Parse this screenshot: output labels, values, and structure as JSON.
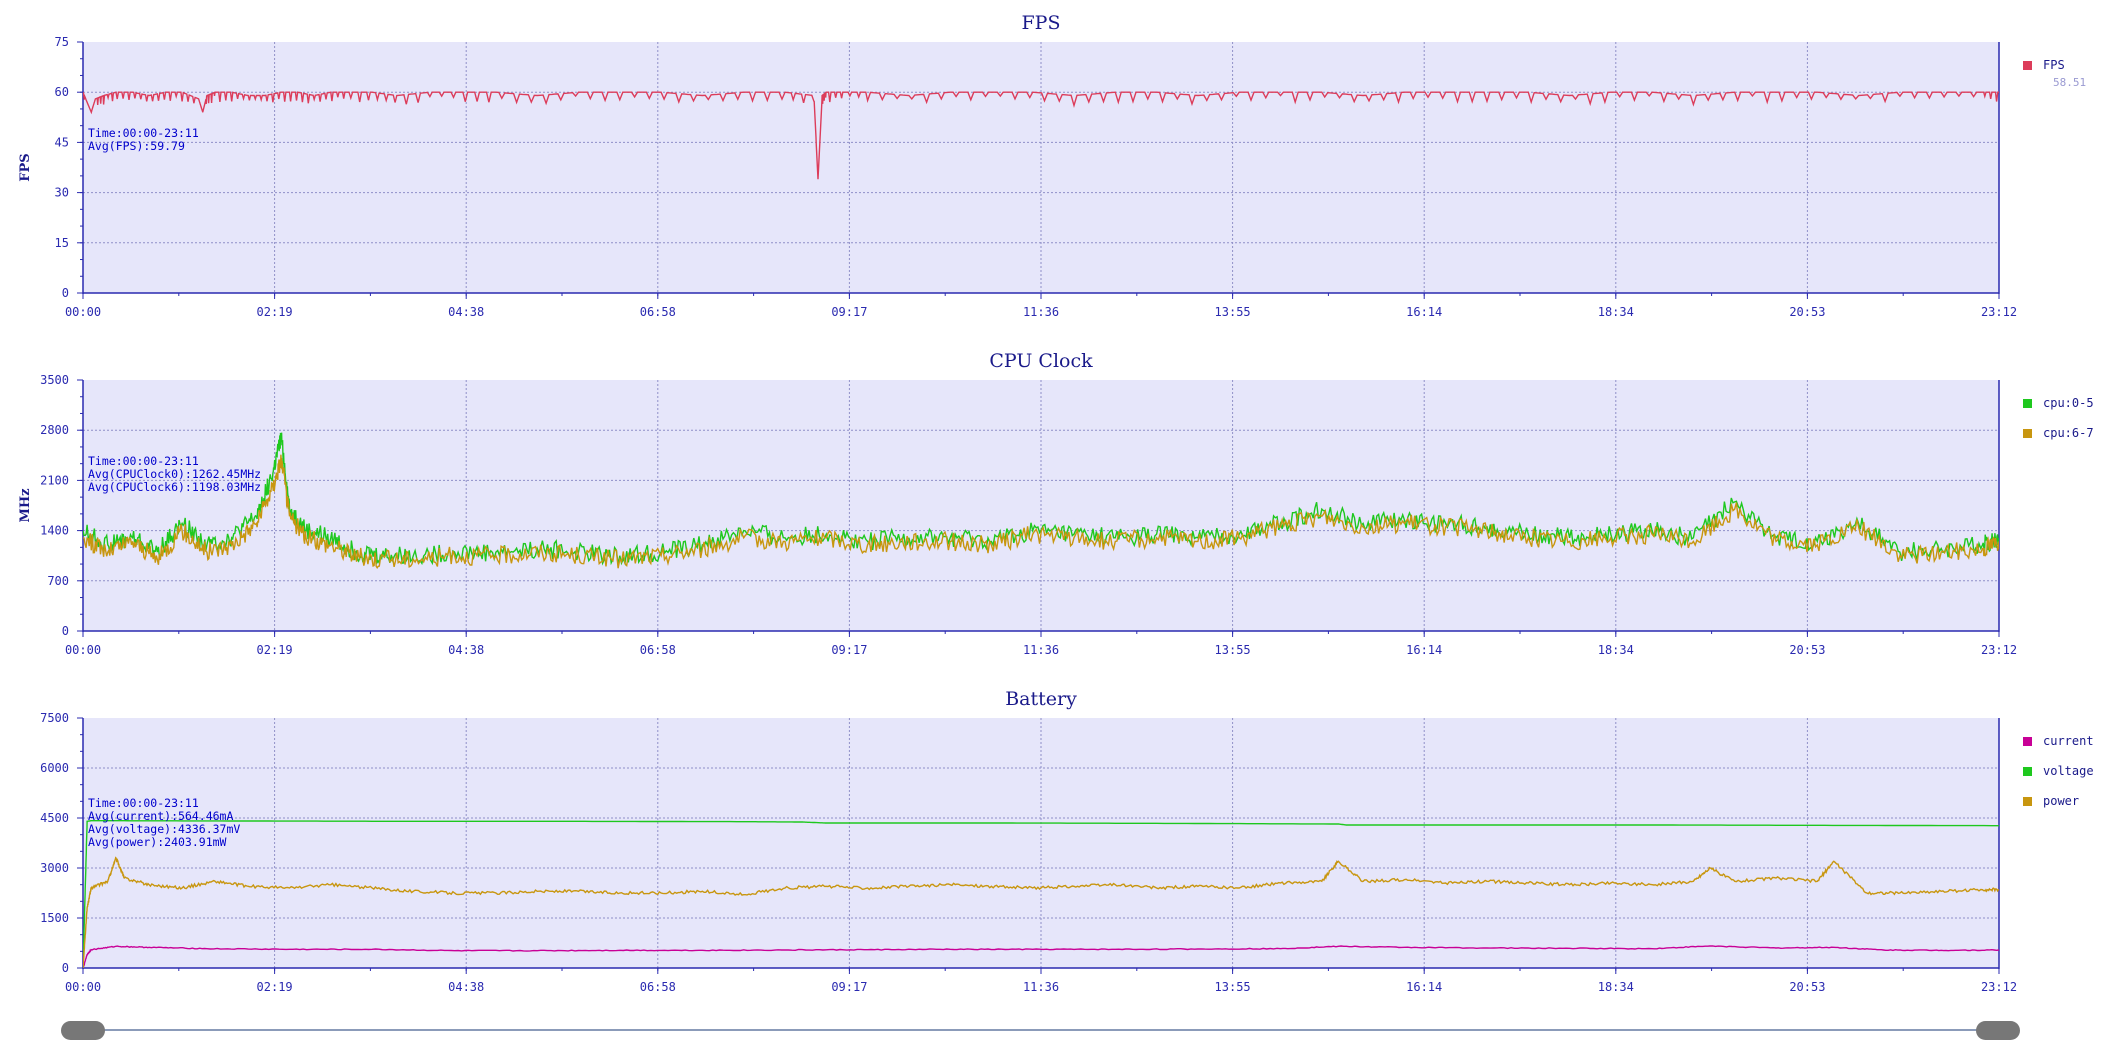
{
  "colors": {
    "plot_bg": "#e6e6fa",
    "axis": "#2a2ab0",
    "grid": "#8f8fc8",
    "title": "#1a1a8a",
    "info": "#0000cc",
    "fps": "#dc3c5a",
    "cpu05": "#1ec81e",
    "cpu67": "#c8960f",
    "current": "#c80096",
    "voltage": "#1ec81e",
    "power": "#c8960f",
    "slider": "#777777"
  },
  "time_ticks": [
    "00:00",
    "02:19",
    "04:38",
    "06:58",
    "09:17",
    "11:36",
    "13:55",
    "16:14",
    "18:34",
    "20:53",
    "23:12"
  ],
  "chart_data": [
    {
      "id": "fps",
      "type": "line",
      "title": "FPS",
      "ylabel": "FPS",
      "ylim": [
        0,
        75
      ],
      "yticks": [
        0,
        15,
        30,
        45,
        60,
        75
      ],
      "xlim_minutes": [
        0,
        23.2
      ],
      "grid": true,
      "legend_placement": "right",
      "info_lines": [
        "Time:00:00-23:11",
        "Avg(FPS):59.79"
      ],
      "series": [
        {
          "name": "FPS",
          "legend_value": "58.51",
          "color_key": "fps",
          "x": [
            0,
            0.1,
            0.15,
            0.25,
            0.4,
            0.6,
            0.8,
            1.0,
            1.2,
            1.4,
            1.45,
            1.5,
            1.6,
            1.8,
            2.0,
            2.2,
            2.4,
            2.6,
            2.8,
            3.0,
            3.2,
            3.5,
            3.8,
            4.2,
            4.6,
            5.0,
            5.5,
            6.0,
            6.5,
            7.0,
            7.5,
            8.0,
            8.5,
            8.85,
            8.9,
            8.95,
            9.0,
            9.2,
            9.5,
            10.0,
            10.5,
            11.0,
            11.5,
            12.0,
            12.5,
            13.0,
            13.5,
            14.0,
            14.5,
            15.0,
            15.5,
            16.0,
            16.5,
            17.0,
            17.5,
            18.0,
            18.5,
            19.0,
            19.5,
            20.0,
            20.5,
            21.0,
            21.5,
            22.0,
            22.5,
            23.0,
            23.2
          ],
          "y": [
            60,
            54,
            58,
            59,
            60,
            60,
            59,
            60,
            60,
            58,
            54,
            59,
            60,
            60,
            59,
            59,
            60,
            60,
            59,
            60,
            60,
            60,
            59,
            60,
            60,
            60,
            59,
            60,
            60,
            60,
            59,
            60,
            60,
            59,
            34,
            59,
            60,
            60,
            60,
            59,
            60,
            60,
            60,
            59,
            60,
            60,
            59,
            60,
            60,
            60,
            59,
            60,
            60,
            60,
            60,
            59,
            60,
            60,
            59,
            60,
            60,
            60,
            59,
            60,
            60,
            60,
            60
          ]
        }
      ]
    },
    {
      "id": "cpu",
      "type": "line",
      "title": "CPU Clock",
      "ylabel": "MHz",
      "ylim": [
        0,
        3500
      ],
      "yticks": [
        0,
        700,
        1400,
        2100,
        2800,
        3500
      ],
      "xlim_minutes": [
        0,
        23.2
      ],
      "grid": true,
      "legend_placement": "right",
      "info_lines": [
        "Time:00:00-23:11",
        "Avg(CPUClock0):1262.45MHz",
        "Avg(CPUClock6):1198.03MHz"
      ],
      "series": [
        {
          "name": "cpu:0-5",
          "color_key": "cpu05",
          "x": [
            0,
            0.3,
            0.6,
            0.9,
            1.2,
            1.5,
            1.8,
            2.1,
            2.3,
            2.4,
            2.5,
            2.7,
            3.0,
            3.3,
            3.6,
            4.0,
            4.5,
            5.0,
            5.5,
            6.0,
            6.5,
            7.0,
            7.5,
            8.0,
            8.5,
            9.0,
            9.5,
            10.0,
            10.5,
            11.0,
            11.5,
            12.0,
            12.5,
            13.0,
            13.5,
            14.0,
            14.5,
            15.0,
            15.5,
            16.0,
            16.5,
            17.0,
            17.5,
            18.0,
            18.5,
            19.0,
            19.5,
            20.0,
            20.5,
            21.0,
            21.5,
            22.0,
            22.5,
            23.0,
            23.2
          ],
          "y": [
            1400,
            1200,
            1300,
            1100,
            1500,
            1200,
            1300,
            1600,
            2200,
            2700,
            1700,
            1400,
            1300,
            1100,
            1050,
            1050,
            1100,
            1100,
            1150,
            1100,
            1050,
            1100,
            1200,
            1400,
            1300,
            1350,
            1250,
            1300,
            1300,
            1250,
            1400,
            1350,
            1300,
            1350,
            1300,
            1350,
            1500,
            1700,
            1500,
            1550,
            1500,
            1450,
            1350,
            1300,
            1350,
            1400,
            1300,
            1800,
            1300,
            1250,
            1500,
            1100,
            1150,
            1200,
            1300
          ]
        },
        {
          "name": "cpu:6-7",
          "color_key": "cpu67",
          "x": [
            0,
            0.3,
            0.6,
            0.9,
            1.2,
            1.5,
            1.8,
            2.1,
            2.3,
            2.4,
            2.5,
            2.7,
            3.0,
            3.3,
            3.6,
            4.0,
            4.5,
            5.0,
            5.5,
            6.0,
            6.5,
            7.0,
            7.5,
            8.0,
            8.5,
            9.0,
            9.5,
            10.0,
            10.5,
            11.0,
            11.5,
            12.0,
            12.5,
            13.0,
            13.5,
            14.0,
            14.5,
            15.0,
            15.5,
            16.0,
            16.5,
            17.0,
            17.5,
            18.0,
            18.5,
            19.0,
            19.5,
            20.0,
            20.5,
            21.0,
            21.5,
            22.0,
            22.5,
            23.0,
            23.2
          ],
          "y": [
            1300,
            1100,
            1250,
            1000,
            1400,
            1100,
            1200,
            1500,
            2000,
            2400,
            1600,
            1300,
            1200,
            1050,
            1000,
            1000,
            1050,
            1050,
            1100,
            1050,
            1000,
            1050,
            1150,
            1300,
            1250,
            1300,
            1200,
            1250,
            1250,
            1200,
            1350,
            1300,
            1250,
            1300,
            1250,
            1300,
            1450,
            1600,
            1450,
            1500,
            1450,
            1400,
            1300,
            1250,
            1300,
            1350,
            1250,
            1700,
            1250,
            1200,
            1450,
            1050,
            1100,
            1150,
            1250
          ]
        }
      ]
    },
    {
      "id": "battery",
      "type": "line",
      "title": "Battery",
      "ylabel": "",
      "ylim": [
        0,
        7500
      ],
      "yticks": [
        0,
        1500,
        3000,
        4500,
        6000,
        7500
      ],
      "xlim_minutes": [
        0,
        23.2
      ],
      "grid": true,
      "legend_placement": "right",
      "info_lines": [
        "Time:00:00-23:11",
        "Avg(current):564.46mA",
        "Avg(voltage):4336.37mV",
        "Avg(power):2403.91mW"
      ],
      "series": [
        {
          "name": "current",
          "color_key": "current",
          "x": [
            0,
            0.05,
            0.1,
            0.4,
            0.8,
            1.5,
            2.5,
            3.5,
            4.5,
            5.5,
            6.5,
            7.5,
            8.5,
            9.5,
            10.5,
            11.5,
            12.5,
            13.5,
            14.5,
            15.2,
            16,
            17,
            18,
            19,
            19.7,
            20.5,
            21.2,
            21.8,
            22.5,
            23.2
          ],
          "y": [
            0,
            400,
            550,
            650,
            620,
            580,
            560,
            560,
            520,
            520,
            530,
            530,
            540,
            550,
            560,
            560,
            560,
            570,
            580,
            650,
            620,
            600,
            590,
            580,
            660,
            600,
            620,
            540,
            530,
            540
          ]
        },
        {
          "name": "voltage",
          "color_key": "voltage",
          "x": [
            0,
            0.05,
            0.1,
            2,
            4,
            6,
            8,
            8.7,
            9,
            11,
            13,
            15.2,
            15.3,
            17,
            19,
            21,
            23.2
          ],
          "y": [
            0,
            4400,
            4420,
            4410,
            4400,
            4400,
            4390,
            4380,
            4350,
            4350,
            4340,
            4320,
            4290,
            4290,
            4290,
            4280,
            4270
          ]
        },
        {
          "name": "power",
          "color_key": "power",
          "x": [
            0,
            0.05,
            0.1,
            0.3,
            0.4,
            0.5,
            0.8,
            1.2,
            1.6,
            2.0,
            2.5,
            3.0,
            3.5,
            4.0,
            4.5,
            5.0,
            5.5,
            6.0,
            6.5,
            7.0,
            7.5,
            8.0,
            8.5,
            9.0,
            9.5,
            10.0,
            10.5,
            11.0,
            11.5,
            12.0,
            12.5,
            13.0,
            13.5,
            14.0,
            14.5,
            15.0,
            15.2,
            15.5,
            16.0,
            16.5,
            17.0,
            17.5,
            18.0,
            18.5,
            19.0,
            19.5,
            19.7,
            20.0,
            20.5,
            21.0,
            21.2,
            21.6,
            22.0,
            22.5,
            23.0,
            23.2
          ],
          "y": [
            0,
            1800,
            2400,
            2600,
            3300,
            2700,
            2500,
            2400,
            2600,
            2450,
            2400,
            2500,
            2400,
            2300,
            2250,
            2250,
            2300,
            2300,
            2250,
            2250,
            2300,
            2200,
            2400,
            2450,
            2400,
            2450,
            2500,
            2450,
            2400,
            2450,
            2500,
            2400,
            2450,
            2400,
            2550,
            2600,
            3200,
            2600,
            2650,
            2550,
            2600,
            2550,
            2500,
            2550,
            2500,
            2600,
            3000,
            2600,
            2700,
            2600,
            3200,
            2250,
            2250,
            2300,
            2350,
            2350
          ]
        }
      ]
    }
  ]
}
